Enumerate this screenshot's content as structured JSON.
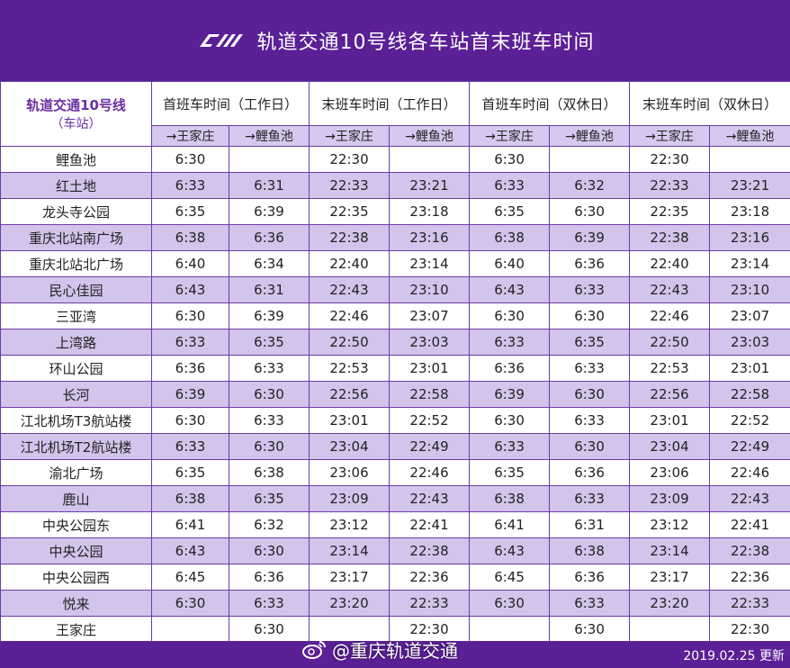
{
  "header": {
    "logo": "crt-logo-icon",
    "title": "轨道交通10号线各车站首末班车时间"
  },
  "table": {
    "station_header": "轨道交通10号线",
    "station_sub": "（车站）",
    "groups": [
      "首班车时间（工作日）",
      "末班车时间（工作日）",
      "首班车时间（双休日）",
      "末班车时间（双休日）"
    ],
    "dirs": [
      "→王家庄",
      "→鲤鱼池",
      "→王家庄",
      "→鲤鱼池",
      "→王家庄",
      "→鲤鱼池",
      "→王家庄",
      "→鲤鱼池"
    ],
    "rows": [
      [
        "鲤鱼池",
        "6:30",
        "",
        "22:30",
        "",
        "6:30",
        "",
        "22:30",
        ""
      ],
      [
        "红土地",
        "6:33",
        "6:31",
        "22:33",
        "23:21",
        "6:33",
        "6:32",
        "22:33",
        "23:21"
      ],
      [
        "龙头寺公园",
        "6:35",
        "6:39",
        "22:35",
        "23:18",
        "6:35",
        "6:30",
        "22:35",
        "23:18"
      ],
      [
        "重庆北站南广场",
        "6:38",
        "6:36",
        "22:38",
        "23:16",
        "6:38",
        "6:39",
        "22:38",
        "23:16"
      ],
      [
        "重庆北站北广场",
        "6:40",
        "6:34",
        "22:40",
        "23:14",
        "6:40",
        "6:36",
        "22:40",
        "23:14"
      ],
      [
        "民心佳园",
        "6:43",
        "6:31",
        "22:43",
        "23:10",
        "6:43",
        "6:33",
        "22:43",
        "23:10"
      ],
      [
        "三亚湾",
        "6:30",
        "6:39",
        "22:46",
        "23:07",
        "6:30",
        "6:30",
        "22:46",
        "23:07"
      ],
      [
        "上湾路",
        "6:33",
        "6:35",
        "22:50",
        "23:03",
        "6:33",
        "6:35",
        "22:50",
        "23:03"
      ],
      [
        "环山公园",
        "6:36",
        "6:33",
        "22:53",
        "23:01",
        "6:36",
        "6:33",
        "22:53",
        "23:01"
      ],
      [
        "长河",
        "6:39",
        "6:30",
        "22:56",
        "22:58",
        "6:39",
        "6:30",
        "22:56",
        "22:58"
      ],
      [
        "江北机场T3航站楼",
        "6:30",
        "6:33",
        "23:01",
        "22:52",
        "6:30",
        "6:33",
        "23:01",
        "22:52"
      ],
      [
        "江北机场T2航站楼",
        "6:33",
        "6:30",
        "23:04",
        "22:49",
        "6:33",
        "6:30",
        "23:04",
        "22:49"
      ],
      [
        "渝北广场",
        "6:35",
        "6:38",
        "23:06",
        "22:46",
        "6:35",
        "6:36",
        "23:06",
        "22:46"
      ],
      [
        "鹿山",
        "6:38",
        "6:35",
        "23:09",
        "22:43",
        "6:38",
        "6:33",
        "23:09",
        "22:43"
      ],
      [
        "中央公园东",
        "6:41",
        "6:32",
        "23:12",
        "22:41",
        "6:41",
        "6:31",
        "23:12",
        "22:41"
      ],
      [
        "中央公园",
        "6:43",
        "6:30",
        "23:14",
        "22:38",
        "6:43",
        "6:38",
        "23:14",
        "22:38"
      ],
      [
        "中央公园西",
        "6:45",
        "6:36",
        "23:17",
        "22:36",
        "6:45",
        "6:36",
        "23:17",
        "22:36"
      ],
      [
        "悦来",
        "6:30",
        "6:33",
        "23:20",
        "22:33",
        "6:30",
        "6:33",
        "23:20",
        "22:33"
      ],
      [
        "王家庄",
        "",
        "6:30",
        "",
        "22:30",
        "",
        "6:30",
        "",
        "22:30"
      ]
    ]
  },
  "footer": {
    "weibo_icon": "weibo-icon",
    "watermark": "@重庆轨道交通",
    "updated": "2019.02.25 更新"
  },
  "colors": {
    "brand_purple": "#5b1f96",
    "row_alt": "#d3c4ec",
    "border": "#6d3aa6"
  }
}
